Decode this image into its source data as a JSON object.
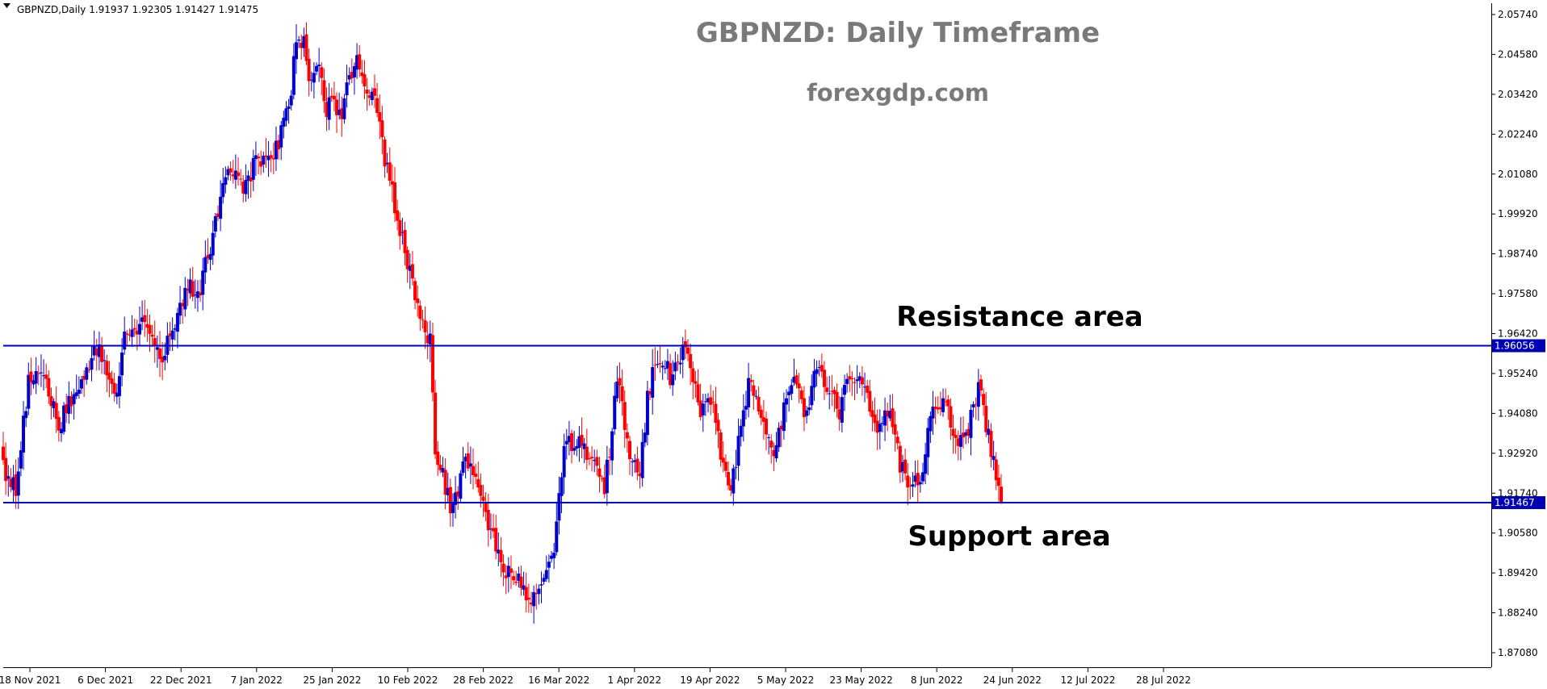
{
  "header": {
    "symbol_info": "GBPNZD,Daily  1.91937 1.92305 1.91427 1.91475",
    "title": "GBPNZD: Daily Timeframe",
    "subtitle": "forexgdp.com"
  },
  "annotations": {
    "resistance_label": "Resistance area",
    "support_label": "Support area"
  },
  "colors": {
    "bull": "#0000cd",
    "bear": "#ff0000",
    "level_line": "#0000b3",
    "axis": "#000000",
    "background": "#ffffff"
  },
  "chart_data": {
    "type": "candlestick",
    "instrument": "GBPNZD",
    "timeframe": "Daily",
    "ohlc_last": {
      "open": 1.91937,
      "high": 1.92305,
      "low": 1.91427,
      "close": 1.91475
    },
    "x_tick_labels": [
      "18 Nov 2021",
      "6 Dec 2021",
      "22 Dec 2021",
      "7 Jan 2022",
      "25 Jan 2022",
      "10 Feb 2022",
      "28 Feb 2022",
      "16 Mar 2022",
      "1 Apr 2022",
      "19 Apr 2022",
      "5 May 2022",
      "23 May 2022",
      "8 Jun 2022",
      "24 Jun 2022",
      "12 Jul 2022",
      "28 Jul 2022"
    ],
    "y_tick_labels": [
      "2.05740",
      "2.04580",
      "2.03420",
      "2.02240",
      "2.01080",
      "1.99920",
      "1.98740",
      "1.97580",
      "1.96420",
      "1.95240",
      "1.94080",
      "1.92920",
      "1.91740",
      "1.90580",
      "1.89420",
      "1.88240",
      "1.87080"
    ],
    "ylim": [
      1.865,
      2.061
    ],
    "levels": [
      {
        "name": "Resistance area",
        "value": 1.96056,
        "label": "1.96056"
      },
      {
        "name": "Support area",
        "value": 1.91467,
        "label": "1.91467"
      }
    ],
    "path_points": [
      [
        0,
        1.925
      ],
      [
        5,
        1.918
      ],
      [
        10,
        1.95
      ],
      [
        15,
        1.954
      ],
      [
        22,
        1.937
      ],
      [
        30,
        1.95
      ],
      [
        37,
        1.96
      ],
      [
        40,
        1.958
      ],
      [
        44,
        1.944
      ],
      [
        48,
        1.962
      ],
      [
        55,
        1.966
      ],
      [
        58,
        1.964
      ],
      [
        63,
        1.958
      ],
      [
        66,
        1.963
      ],
      [
        70,
        1.973
      ],
      [
        74,
        1.978
      ],
      [
        77,
        1.975
      ],
      [
        83,
        1.993
      ],
      [
        88,
        2.011
      ],
      [
        92,
        2.01
      ],
      [
        95,
        2.006
      ],
      [
        100,
        2.015
      ],
      [
        104,
        2.013
      ],
      [
        108,
        2.018
      ],
      [
        111,
        2.025
      ],
      [
        114,
        2.036
      ],
      [
        116,
        2.05
      ],
      [
        119,
        2.05
      ],
      [
        121,
        2.04
      ],
      [
        125,
        2.043
      ],
      [
        128,
        2.03
      ],
      [
        130,
        2.033
      ],
      [
        134,
        2.025
      ],
      [
        137,
        2.04
      ],
      [
        140,
        2.043
      ],
      [
        144,
        2.036
      ],
      [
        148,
        2.03
      ],
      [
        151,
        2.015
      ],
      [
        156,
        1.998
      ],
      [
        160,
        1.985
      ],
      [
        165,
        1.97
      ],
      [
        169,
        1.962
      ],
      [
        171,
        1.93
      ],
      [
        174,
        1.922
      ],
      [
        178,
        1.912
      ],
      [
        183,
        1.928
      ],
      [
        188,
        1.919
      ],
      [
        191,
        1.909
      ],
      [
        195,
        1.902
      ],
      [
        199,
        1.895
      ],
      [
        202,
        1.894
      ],
      [
        206,
        1.888
      ],
      [
        209,
        1.885
      ],
      [
        213,
        1.89
      ],
      [
        218,
        1.902
      ],
      [
        222,
        1.932
      ],
      [
        228,
        1.932
      ],
      [
        233,
        1.926
      ],
      [
        238,
        1.918
      ],
      [
        243,
        1.95
      ],
      [
        248,
        1.93
      ],
      [
        252,
        1.923
      ],
      [
        255,
        1.945
      ],
      [
        259,
        1.958
      ],
      [
        264,
        1.952
      ],
      [
        269,
        1.96
      ],
      [
        272,
        1.955
      ],
      [
        276,
        1.94
      ],
      [
        280,
        1.945
      ],
      [
        284,
        1.929
      ],
      [
        288,
        1.918
      ],
      [
        291,
        1.932
      ],
      [
        295,
        1.95
      ],
      [
        300,
        1.941
      ],
      [
        305,
        1.93
      ],
      [
        309,
        1.942
      ],
      [
        313,
        1.952
      ],
      [
        318,
        1.94
      ],
      [
        322,
        1.955
      ],
      [
        326,
        1.949
      ],
      [
        331,
        1.942
      ],
      [
        336,
        1.953
      ],
      [
        341,
        1.948
      ],
      [
        346,
        1.937
      ],
      [
        351,
        1.944
      ],
      [
        355,
        1.925
      ],
      [
        359,
        1.921
      ],
      [
        363,
        1.92
      ],
      [
        367,
        1.94
      ],
      [
        372,
        1.944
      ],
      [
        378,
        1.932
      ],
      [
        382,
        1.936
      ],
      [
        386,
        1.95
      ],
      [
        389,
        1.938
      ],
      [
        392,
        1.926
      ],
      [
        395,
        1.917
      ]
    ]
  }
}
